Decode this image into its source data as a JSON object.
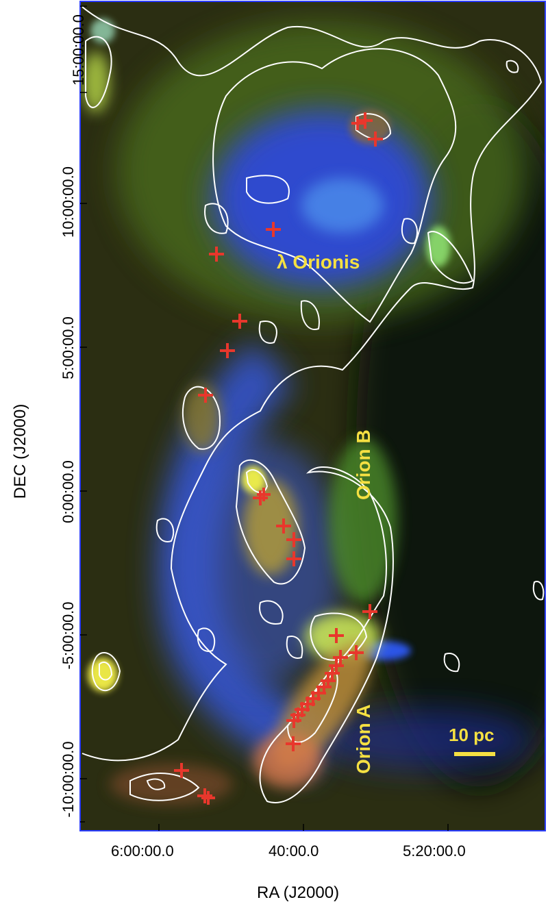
{
  "figure": {
    "axes": {
      "ylabel": "DEC (J2000)",
      "xlabel": "RA (J2000)",
      "yticks": [
        "15:00:00.0",
        "10:00:00.0",
        "5:00:00.0",
        "0:00:00.0",
        "-5:00:00.0",
        "-10:00:00.0"
      ],
      "xticks": [
        "6:00:00.0",
        "40:00.0",
        "5:20:00.0"
      ]
    },
    "annotations": {
      "lambda_orionis": "λ Orionis",
      "orion_b": "Orion B",
      "orion_a": "Orion A",
      "scalebar_label": "10 pc"
    },
    "colors": {
      "annotation_text": "#f5e042",
      "marker": "#e8372c",
      "contour": "#ffffff",
      "frame": "#2a3cff"
    },
    "markers_count": 37
  }
}
